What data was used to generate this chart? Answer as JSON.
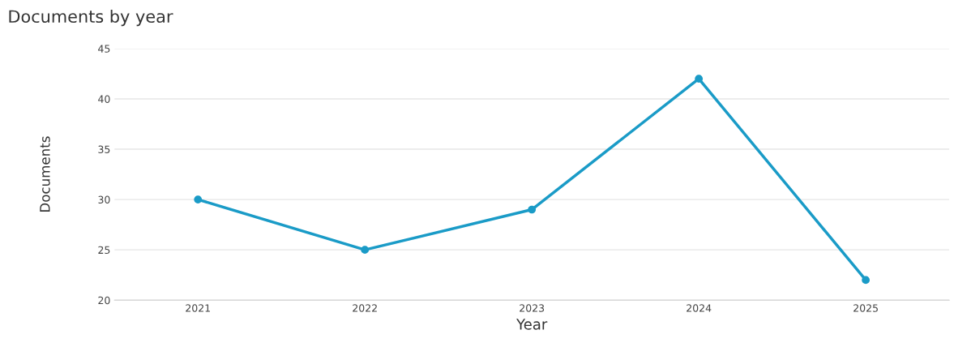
{
  "chart_data": {
    "type": "line",
    "title": "Documents by year",
    "xlabel": "Year",
    "ylabel": "Documents",
    "categories": [
      "2021",
      "2022",
      "2023",
      "2024",
      "2025"
    ],
    "series": [
      {
        "color": "#1a9bc7",
        "values": [
          30,
          25,
          29,
          42,
          22
        ]
      }
    ],
    "ylim": [
      20,
      45
    ],
    "yticks": [
      20,
      25,
      30,
      35,
      40,
      45
    ],
    "grid": "y",
    "marker": "circle",
    "line_style": "solid",
    "legend": false
  }
}
